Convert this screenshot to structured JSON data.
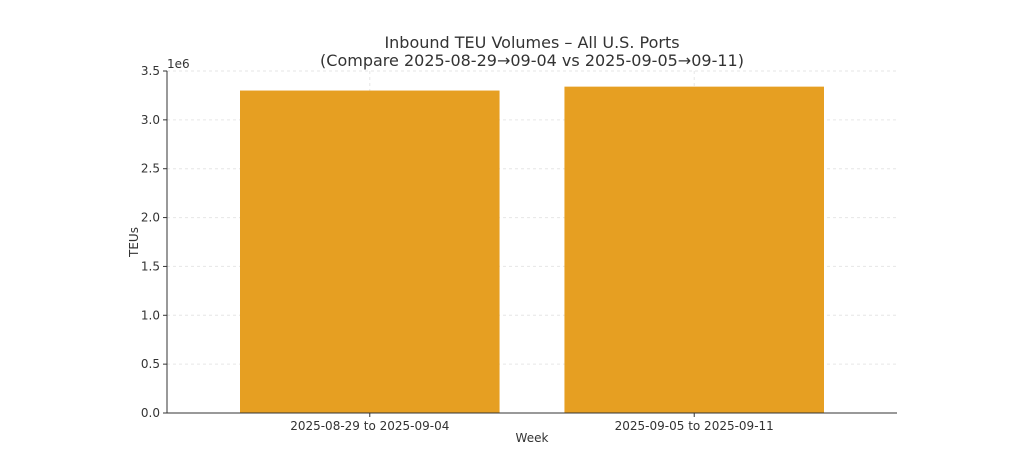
{
  "chart_data": {
    "type": "bar",
    "title": "Inbound TEU Volumes – All U.S. Ports",
    "subtitle": "(Compare 2025-08-29→09-04 vs 2025-09-05→09-11)",
    "xlabel": "Week",
    "ylabel": "TEUs",
    "y_offset_label": "1e6",
    "categories": [
      "2025-08-29 to 2025-09-04",
      "2025-09-05 to 2025-09-11"
    ],
    "values": [
      3300000,
      3340000
    ],
    "ylim": [
      0,
      3500000
    ],
    "yticks": [
      0,
      500000,
      1000000,
      1500000,
      2000000,
      2500000,
      3000000,
      3500000
    ],
    "ytick_labels": [
      "0.0",
      "0.5",
      "1.0",
      "1.5",
      "2.0",
      "2.5",
      "3.0",
      "3.5"
    ],
    "grid": true,
    "bar_color": "#E69F22"
  }
}
